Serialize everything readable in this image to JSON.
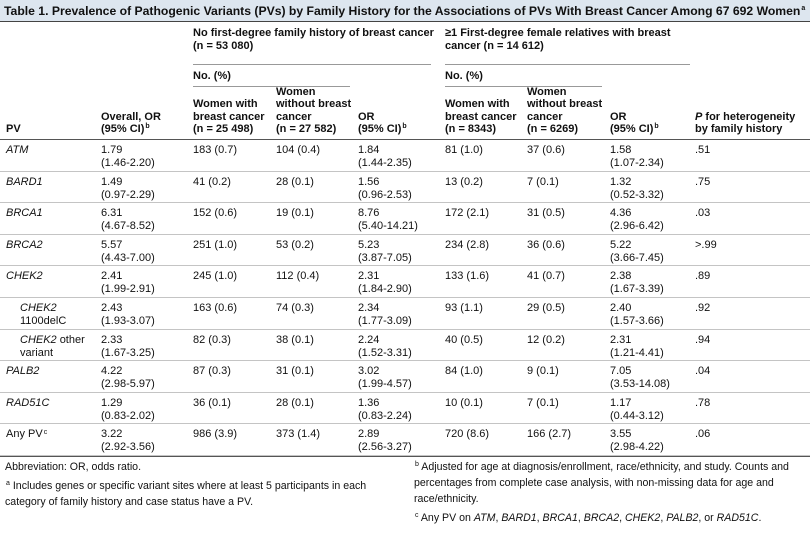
{
  "title": {
    "text": "Table 1. Prevalence of Pathogenic Variants (PVs) by Family History for the Associations of PVs With Breast Cancer Among 67 692 Women",
    "sup": "a"
  },
  "header": {
    "pv": "PV",
    "overall": {
      "lines": [
        "Overall, OR",
        "(95% CI)"
      ],
      "sup": "b"
    },
    "groups": [
      {
        "title": [
          "No first-degree family history of breast cancer",
          "(n = 53 080)"
        ],
        "subhead": "No. (%)",
        "cols": [
          [
            "Women with",
            "breast cancer",
            "(n = 25 498)"
          ],
          [
            "Women",
            "without breast",
            "cancer",
            "(n = 27 582)"
          ]
        ],
        "or": {
          "lines": [
            "OR",
            "(95% CI)"
          ],
          "sup": "b"
        }
      },
      {
        "title": [
          "≥1 First-degree female relatives with breast",
          "cancer (n = 14 612)"
        ],
        "subhead": "No. (%)",
        "cols": [
          [
            "Women with",
            "breast cancer",
            "(n = 8343)"
          ],
          [
            "Women",
            "without breast",
            "cancer",
            "(n = 6269)"
          ]
        ],
        "or": {
          "lines": [
            "OR",
            "(95% CI)"
          ],
          "sup": "b"
        }
      }
    ],
    "p": {
      "symbol": "P",
      "rest": " for heterogeneity",
      "line2": "by family history"
    }
  },
  "rows": [
    {
      "pv": {
        "gene": "ATM"
      },
      "cells": [
        [
          "1.79",
          "(1.46-2.20)"
        ],
        [
          "183 (0.7)"
        ],
        [
          "104 (0.4)"
        ],
        [
          "1.84",
          "(1.44-2.35)"
        ],
        [
          "81 (1.0)"
        ],
        [
          "37 (0.6)"
        ],
        [
          "1.58",
          "(1.07-2.34)"
        ],
        [
          ".51"
        ]
      ]
    },
    {
      "pv": {
        "gene": "BARD1"
      },
      "cells": [
        [
          "1.49",
          "(0.97-2.29)"
        ],
        [
          "41 (0.2)"
        ],
        [
          "28 (0.1)"
        ],
        [
          "1.56",
          "(0.96-2.53)"
        ],
        [
          "13 (0.2)"
        ],
        [
          "7 (0.1)"
        ],
        [
          "1.32",
          "(0.52-3.32)"
        ],
        [
          ".75"
        ]
      ]
    },
    {
      "pv": {
        "gene": "BRCA1"
      },
      "cells": [
        [
          "6.31",
          "(4.67-8.52)"
        ],
        [
          "152 (0.6)"
        ],
        [
          "19 (0.1)"
        ],
        [
          "8.76",
          "(5.40-14.21)"
        ],
        [
          "172 (2.1)"
        ],
        [
          "31 (0.5)"
        ],
        [
          "4.36",
          "(2.96-6.42)"
        ],
        [
          ".03"
        ]
      ]
    },
    {
      "pv": {
        "gene": "BRCA2"
      },
      "cells": [
        [
          "5.57",
          "(4.43-7.00)"
        ],
        [
          "251 (1.0)"
        ],
        [
          "53 (0.2)"
        ],
        [
          "5.23",
          "(3.87-7.05)"
        ],
        [
          "234 (2.8)"
        ],
        [
          "36 (0.6)"
        ],
        [
          "5.22",
          "(3.66-7.45)"
        ],
        [
          ">.99"
        ]
      ]
    },
    {
      "pv": {
        "gene": "CHEK2"
      },
      "cells": [
        [
          "2.41",
          "(1.99-2.91)"
        ],
        [
          "245 (1.0)"
        ],
        [
          "112 (0.4)"
        ],
        [
          "2.31",
          "(1.84-2.90)"
        ],
        [
          "133 (1.6)"
        ],
        [
          "41 (0.7)"
        ],
        [
          "2.38",
          "(1.67-3.39)"
        ],
        [
          ".89"
        ]
      ]
    },
    {
      "pv": {
        "gene": "CHEK2",
        "detail": "1100delC"
      },
      "cells": [
        [
          "2.43",
          "(1.93-3.07)"
        ],
        [
          "163 (0.6)"
        ],
        [
          "74 (0.3)"
        ],
        [
          "2.34",
          "(1.77-3.09)"
        ],
        [
          "93 (1.1)"
        ],
        [
          "29 (0.5)"
        ],
        [
          "2.40",
          "(1.57-3.66)"
        ],
        [
          ".92"
        ]
      ]
    },
    {
      "pv": {
        "gene": "CHEK2",
        "detail": "other variant"
      },
      "cells": [
        [
          "2.33",
          "(1.67-3.25)"
        ],
        [
          "82 (0.3)"
        ],
        [
          "38 (0.1)"
        ],
        [
          "2.24",
          "(1.52-3.31)"
        ],
        [
          "40 (0.5)"
        ],
        [
          "12 (0.2)"
        ],
        [
          "2.31",
          "(1.21-4.41)"
        ],
        [
          ".94"
        ]
      ]
    },
    {
      "pv": {
        "gene": "PALB2"
      },
      "cells": [
        [
          "4.22",
          "(2.98-5.97)"
        ],
        [
          "87 (0.3)"
        ],
        [
          "31 (0.1)"
        ],
        [
          "3.02",
          "(1.99-4.57)"
        ],
        [
          "84 (1.0)"
        ],
        [
          "9 (0.1)"
        ],
        [
          "7.05",
          "(3.53-14.08)"
        ],
        [
          ".04"
        ]
      ]
    },
    {
      "pv": {
        "gene": "RAD51C"
      },
      "cells": [
        [
          "1.29",
          "(0.83-2.02)"
        ],
        [
          "36 (0.1)"
        ],
        [
          "28 (0.1)"
        ],
        [
          "1.36",
          "(0.83-2.24)"
        ],
        [
          "10 (0.1)"
        ],
        [
          "7 (0.1)"
        ],
        [
          "1.17",
          "(0.44-3.12)"
        ],
        [
          ".78"
        ]
      ]
    },
    {
      "pv": {
        "label": "Any PV",
        "sup": "c"
      },
      "cells": [
        [
          "3.22",
          "(2.92-3.56)"
        ],
        [
          "986 (3.9)"
        ],
        [
          "373 (1.4)"
        ],
        [
          "2.89",
          "(2.56-3.27)"
        ],
        [
          "720 (8.6)"
        ],
        [
          "166 (2.7)"
        ],
        [
          "3.55",
          "(2.98-4.22)"
        ],
        [
          ".06"
        ]
      ]
    }
  ],
  "footnotes": {
    "abbreviation": "Abbreviation: OR, odds ratio.",
    "a": {
      "mark": "a",
      "text": "Includes genes or specific variant sites where at least 5 participants in each category of family history and case status have a PV."
    },
    "b": {
      "mark": "b",
      "text": "Adjusted for age at diagnosis/enrollment, race/ethnicity, and study. Counts and percentages from complete case analysis, with non-missing data for age and race/ethnicity."
    },
    "c": {
      "mark": "c",
      "parts": [
        "Any PV on ",
        "ATM",
        ", ",
        "BARD1",
        ", ",
        "BRCA1",
        ", ",
        "BRCA2",
        ", ",
        "CHEK2",
        ", ",
        "PALB2",
        ", or ",
        "RAD51C",
        "."
      ]
    }
  }
}
